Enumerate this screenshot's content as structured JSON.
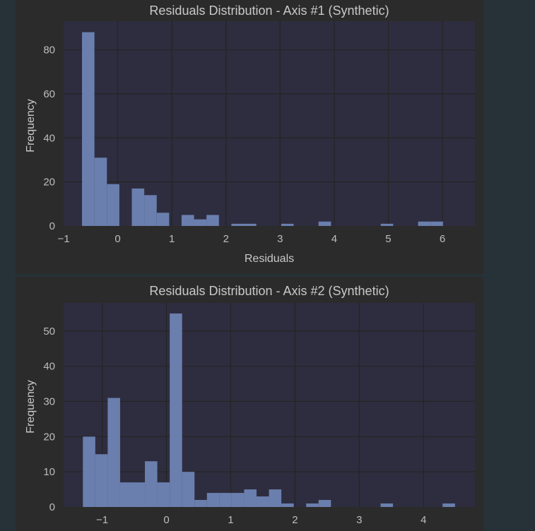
{
  "chart_data": [
    {
      "type": "bar",
      "title": "Residuals Distribution - Axis #1 (Synthetic)",
      "xlabel": "Residuals",
      "ylabel": "Frequency",
      "xlim": [
        -1,
        6.6
      ],
      "ylim": [
        0,
        93
      ],
      "xticks": [
        -1,
        0,
        1,
        2,
        3,
        4,
        5,
        6
      ],
      "xtick_labels": [
        "−1",
        "0",
        "1",
        "2",
        "3",
        "4",
        "5",
        "6"
      ],
      "yticks": [
        0,
        20,
        40,
        60,
        80
      ],
      "bin_start": -0.66,
      "bin_width": 0.23,
      "values": [
        88,
        31,
        19,
        0,
        17,
        14,
        6,
        0,
        5,
        3,
        5,
        0,
        1,
        1,
        0,
        0,
        1,
        0,
        0,
        2,
        0,
        0,
        0,
        0,
        1,
        0,
        0,
        2,
        2
      ],
      "grid": true
    },
    {
      "type": "bar",
      "title": "Residuals Distribution - Axis #2 (Synthetic)",
      "xlabel": "",
      "ylabel": "Frequency",
      "xlim": [
        -1.6,
        4.8
      ],
      "ylim": [
        0,
        58
      ],
      "xticks": [
        -1,
        0,
        1,
        2,
        3,
        4
      ],
      "xtick_labels": [
        "−1",
        "0",
        "1",
        "2",
        "3",
        "4"
      ],
      "yticks": [
        0,
        10,
        20,
        30,
        40,
        50
      ],
      "bin_start": -1.3,
      "bin_width": 0.193,
      "values": [
        20,
        15,
        31,
        7,
        7,
        13,
        7,
        55,
        10,
        2,
        4,
        4,
        4,
        5,
        3,
        5,
        1,
        0,
        1,
        2,
        0,
        0,
        0,
        0,
        1,
        0,
        0,
        0,
        0,
        1
      ],
      "grid": true
    }
  ],
  "colors": {
    "bar": "#6a7fae",
    "plot_bg": "#2e2d3f",
    "grid": "#242424"
  }
}
